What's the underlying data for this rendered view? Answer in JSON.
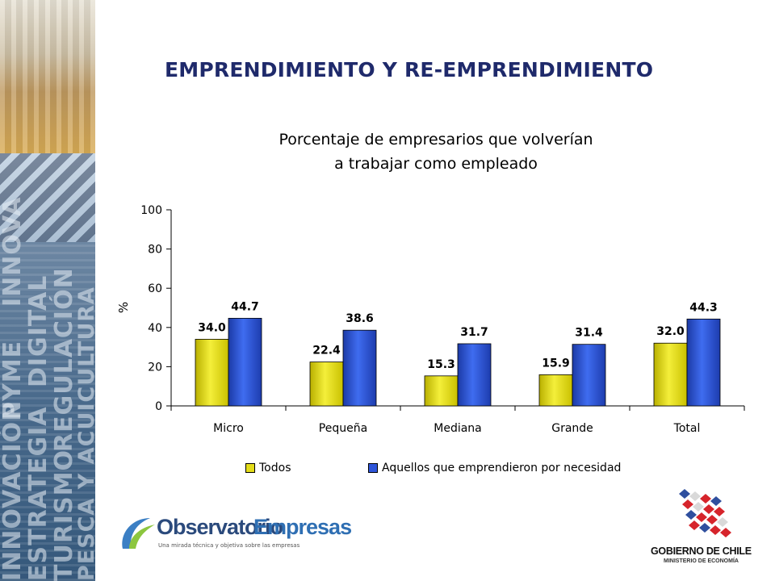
{
  "slide": {
    "title": "EMPRENDIMIENTO Y RE-EMPRENDIMIENTO"
  },
  "side_strip": {
    "words": [
      "INNOVACIÓN",
      "PYME",
      "INNOVA",
      "ESTRATEGIA",
      "DIGITAL",
      "TURISMO",
      "REGULACIÓN",
      "PESCA Y ACUICULTURA"
    ]
  },
  "chart_data": {
    "type": "bar",
    "title_lines": [
      "Porcentaje de empresarios que volverían",
      "a trabajar como empleado"
    ],
    "categories": [
      "Micro",
      "Pequeña",
      "Mediana",
      "Grande",
      "Total"
    ],
    "series": [
      {
        "name": "Todos",
        "values": [
          34.0,
          22.4,
          15.3,
          15.9,
          32.0
        ],
        "color": "#e3dc1a"
      },
      {
        "name": "Aquellos que emprendieron por necesidad",
        "values": [
          44.7,
          38.6,
          31.7,
          31.4,
          44.3
        ],
        "color": "#2e55d9"
      }
    ],
    "ylabel": "%",
    "ylim": [
      0,
      100
    ],
    "yticks": [
      0,
      20,
      40,
      60,
      80,
      100
    ],
    "grid": false,
    "legend": "bottom"
  },
  "logos": {
    "observatorio": {
      "name_part1": "Observatorio",
      "name_part2": "Empresas",
      "tagline": "Una mirada técnica y objetiva sobre las empresas"
    },
    "gobierno": {
      "title": "GOBIERNO DE CHILE",
      "subtitle": "MINISTERIO DE ECONOMÍA"
    }
  }
}
